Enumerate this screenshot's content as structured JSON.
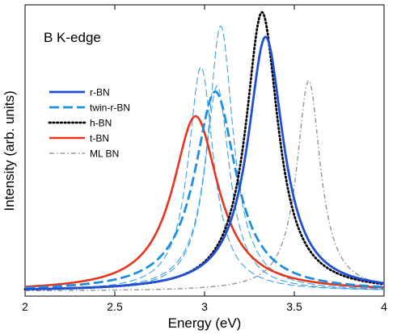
{
  "chart_data": {
    "type": "line",
    "title": "",
    "annotation": "B K-edge",
    "xlabel": "Energy (eV)",
    "ylabel": "Intensity (arb. units)",
    "xlim": [
      2,
      4
    ],
    "ylim": [
      0,
      1.0
    ],
    "x_ticks": [
      2,
      2.5,
      3,
      3.5,
      4
    ],
    "x_tick_labels": [
      "2",
      "2.5",
      "3",
      "3.5",
      "4"
    ],
    "grid": false,
    "legend_position": "upper-left",
    "series": [
      {
        "name": "r-BN",
        "color": "#1f4fd8",
        "dash": "solid",
        "width": 2.8,
        "peak_x": 3.34,
        "peak_y": 0.93,
        "gamma": 0.12
      },
      {
        "name": "twin-r-BN",
        "color": "#1e8fe0",
        "dash": "long-dash",
        "width": 2.8,
        "peaks": [
          {
            "x": 3.06,
            "y": 0.73,
            "gamma": 0.14
          }
        ]
      },
      {
        "name": "h-BN",
        "color": "#000000",
        "dash": "dotted",
        "width": 2.8,
        "peak_x": 3.32,
        "peak_y": 1.02,
        "gamma": 0.11
      },
      {
        "name": "t-BN",
        "color": "#e8341c",
        "dash": "solid",
        "width": 2.6,
        "peak_x": 2.95,
        "peak_y": 0.64,
        "gamma": 0.155
      },
      {
        "name": "ML BN",
        "color": "#9a9a9a",
        "dash": "dash-dot",
        "width": 1.5,
        "peak_x": 3.58,
        "peak_y": 0.77,
        "gamma": 0.08
      },
      {
        "name": "",
        "color": "#3aa0ea",
        "dash": "thin-dash",
        "width": 1.1,
        "peak_x": 2.98,
        "peak_y": 0.82,
        "gamma": 0.085
      },
      {
        "name": "",
        "color": "#3aa0ea",
        "dash": "thin-dash",
        "width": 1.1,
        "peak_x": 3.07,
        "peak_y": 0.75,
        "gamma": 0.085
      },
      {
        "name": "",
        "color": "#3aa0ea",
        "dash": "thin-dash",
        "width": 1.1,
        "peak_x": 3.09,
        "peak_y": 0.97,
        "gamma": 0.085
      }
    ]
  }
}
